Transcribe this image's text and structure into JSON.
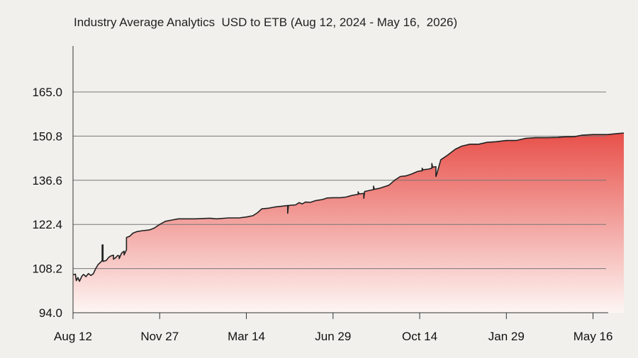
{
  "chart_data": {
    "type": "area",
    "title": "Industry Average Analytics  USD to ETB (Aug 12, 2024 - May 16,  2026)",
    "xlabel": "",
    "ylabel": "",
    "x_range": [
      "2024-08-12",
      "2026-06-23"
    ],
    "ylim": [
      94.0,
      165.0
    ],
    "y_ticks": [
      "94.0",
      "108.2",
      "122.4",
      "136.6",
      "150.8",
      "165.0"
    ],
    "x_ticks": [
      {
        "date": "2024-08-12",
        "label": "Aug 12"
      },
      {
        "date": "2024-11-27",
        "label": "Nov 27"
      },
      {
        "date": "2025-03-14",
        "label": "Mar 14"
      },
      {
        "date": "2025-06-29",
        "label": "Jun 29"
      },
      {
        "date": "2025-10-14",
        "label": "Oct 14"
      },
      {
        "date": "2026-01-29",
        "label": "Jan 29"
      },
      {
        "date": "2026-05-16",
        "label": "May 16"
      }
    ],
    "grid": true,
    "fill_colors": {
      "top": "#e8504a",
      "bottom": "#fdf6f4"
    },
    "line_color": "#222222",
    "series": [
      {
        "points": [
          [
            "2024-08-12",
            106.2
          ],
          [
            "2024-08-15",
            106.4
          ],
          [
            "2024-08-16",
            104.3
          ],
          [
            "2024-08-18",
            105.3
          ],
          [
            "2024-08-20",
            104.1
          ],
          [
            "2024-08-23",
            105.8
          ],
          [
            "2024-08-25",
            106.3
          ],
          [
            "2024-08-28",
            105.6
          ],
          [
            "2024-08-31",
            106.6
          ],
          [
            "2024-09-03",
            106.0
          ],
          [
            "2024-09-06",
            106.5
          ],
          [
            "2024-09-09",
            108.2
          ],
          [
            "2024-09-12",
            109.5
          ],
          [
            "2024-09-15",
            110.2
          ],
          [
            "2024-09-17",
            110.8
          ],
          [
            "2024-09-17",
            115.8
          ],
          [
            "2024-09-18",
            115.8
          ],
          [
            "2024-09-18",
            110.5
          ],
          [
            "2024-09-22",
            110.8
          ],
          [
            "2024-09-25",
            111.8
          ],
          [
            "2024-09-28",
            112.3
          ],
          [
            "2024-10-01",
            112.5
          ],
          [
            "2024-10-01",
            111.2
          ],
          [
            "2024-10-04",
            111.8
          ],
          [
            "2024-10-06",
            112.4
          ],
          [
            "2024-10-08",
            112.3
          ],
          [
            "2024-10-08",
            111.4
          ],
          [
            "2024-10-11",
            113.2
          ],
          [
            "2024-10-14",
            113.8
          ],
          [
            "2024-10-14",
            112.6
          ],
          [
            "2024-10-17",
            114.2
          ],
          [
            "2024-10-17",
            118.2
          ],
          [
            "2024-10-21",
            118.6
          ],
          [
            "2024-10-25",
            119.6
          ],
          [
            "2024-10-30",
            120.1
          ],
          [
            "2024-11-06",
            120.4
          ],
          [
            "2024-11-14",
            120.6
          ],
          [
            "2024-11-20",
            121.2
          ],
          [
            "2024-11-27",
            122.4
          ],
          [
            "2024-12-04",
            123.4
          ],
          [
            "2024-12-12",
            123.8
          ],
          [
            "2024-12-20",
            124.2
          ],
          [
            "2025-01-10",
            124.2
          ],
          [
            "2025-01-28",
            124.4
          ],
          [
            "2025-02-05",
            124.2
          ],
          [
            "2025-02-20",
            124.5
          ],
          [
            "2025-03-05",
            124.5
          ],
          [
            "2025-03-14",
            124.8
          ],
          [
            "2025-03-22",
            125.2
          ],
          [
            "2025-03-28",
            126.2
          ],
          [
            "2025-04-02",
            127.4
          ],
          [
            "2025-04-10",
            127.6
          ],
          [
            "2025-04-18",
            128.0
          ],
          [
            "2025-04-28",
            128.3
          ],
          [
            "2025-05-04",
            128.5
          ],
          [
            "2025-05-04",
            126.0
          ],
          [
            "2025-05-05",
            128.5
          ],
          [
            "2025-05-14",
            128.7
          ],
          [
            "2025-05-18",
            129.4
          ],
          [
            "2025-05-22",
            129.0
          ],
          [
            "2025-05-26",
            129.6
          ],
          [
            "2025-06-01",
            129.5
          ],
          [
            "2025-06-08",
            130.1
          ],
          [
            "2025-06-16",
            130.4
          ],
          [
            "2025-06-22",
            130.9
          ],
          [
            "2025-06-29",
            131.0
          ],
          [
            "2025-07-08",
            131.0
          ],
          [
            "2025-07-15",
            131.2
          ],
          [
            "2025-07-22",
            131.7
          ],
          [
            "2025-07-30",
            132.1
          ],
          [
            "2025-07-30",
            132.9
          ],
          [
            "2025-07-31",
            132.2
          ],
          [
            "2025-08-06",
            132.4
          ],
          [
            "2025-08-06",
            130.8
          ],
          [
            "2025-08-07",
            133.0
          ],
          [
            "2025-08-14",
            133.4
          ],
          [
            "2025-08-18",
            133.6
          ],
          [
            "2025-08-18",
            134.7
          ],
          [
            "2025-08-19",
            133.7
          ],
          [
            "2025-08-25",
            134.0
          ],
          [
            "2025-09-01",
            134.6
          ],
          [
            "2025-09-06",
            135.0
          ],
          [
            "2025-09-13",
            136.6
          ],
          [
            "2025-09-20",
            137.8
          ],
          [
            "2025-09-27",
            138.0
          ],
          [
            "2025-10-04",
            138.6
          ],
          [
            "2025-10-11",
            139.4
          ],
          [
            "2025-10-14",
            139.6
          ],
          [
            "2025-10-17",
            139.6
          ],
          [
            "2025-10-17",
            140.5
          ],
          [
            "2025-10-18",
            140.0
          ],
          [
            "2025-10-25",
            140.2
          ],
          [
            "2025-10-29",
            140.5
          ],
          [
            "2025-10-29",
            142.0
          ],
          [
            "2025-10-30",
            140.8
          ],
          [
            "2025-11-03",
            141.0
          ],
          [
            "2025-11-03",
            137.8
          ],
          [
            "2025-11-04",
            138.5
          ],
          [
            "2025-11-09",
            143.2
          ],
          [
            "2025-11-17",
            144.6
          ],
          [
            "2025-11-27",
            146.6
          ],
          [
            "2025-12-05",
            147.6
          ],
          [
            "2025-12-15",
            148.2
          ],
          [
            "2025-12-26",
            148.2
          ],
          [
            "2026-01-05",
            148.8
          ],
          [
            "2026-01-16",
            149.0
          ],
          [
            "2026-01-29",
            149.4
          ],
          [
            "2026-02-10",
            149.4
          ],
          [
            "2026-02-22",
            150.1
          ],
          [
            "2026-03-06",
            150.3
          ],
          [
            "2026-03-20",
            150.3
          ],
          [
            "2026-04-02",
            150.4
          ],
          [
            "2026-04-12",
            150.6
          ],
          [
            "2026-04-22",
            150.6
          ],
          [
            "2026-05-02",
            151.1
          ],
          [
            "2026-05-16",
            151.3
          ],
          [
            "2026-06-03",
            151.3
          ],
          [
            "2026-06-14",
            151.6
          ],
          [
            "2026-06-23",
            151.8
          ]
        ]
      }
    ]
  }
}
